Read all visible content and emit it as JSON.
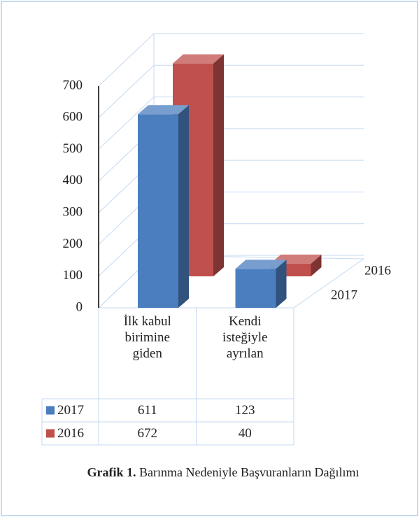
{
  "chart_data": {
    "type": "bar3d",
    "categories": [
      "İlk kabul birimine giden",
      "Kendi isteğiyle ayrılan"
    ],
    "series": [
      {
        "name": "2017",
        "color": "#4a7ebf",
        "values": [
          611,
          123
        ]
      },
      {
        "name": "2016",
        "color": "#c0504d",
        "values": [
          672,
          40
        ]
      }
    ],
    "ylim": [
      0,
      700
    ],
    "yticks": [
      0,
      100,
      200,
      300,
      400,
      500,
      600,
      700
    ],
    "grid": true,
    "caption": {
      "label": "Grafik 1.",
      "text": "Barınma Nedeniyle Başvuranların Dağılımı"
    }
  }
}
